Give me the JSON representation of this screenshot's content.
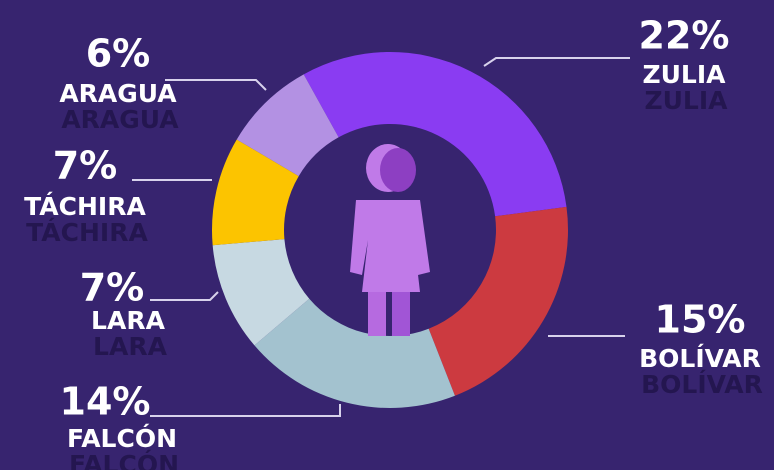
{
  "chart_data": {
    "type": "donut",
    "categories": [
      "ZULIA",
      "BOLÍVAR",
      "FALCÓN",
      "LARA",
      "TÁCHIRA",
      "ARAGUA"
    ],
    "values": [
      22,
      15,
      14,
      7,
      7,
      6
    ],
    "value_labels": [
      "22%",
      "15%",
      "14%",
      "7%",
      "7%",
      "6%"
    ],
    "colors": [
      "#8a3cf2",
      "#cc3a40",
      "#a3c2cf",
      "#c7d9e2",
      "#fcc400",
      "#b391e3"
    ]
  }
}
